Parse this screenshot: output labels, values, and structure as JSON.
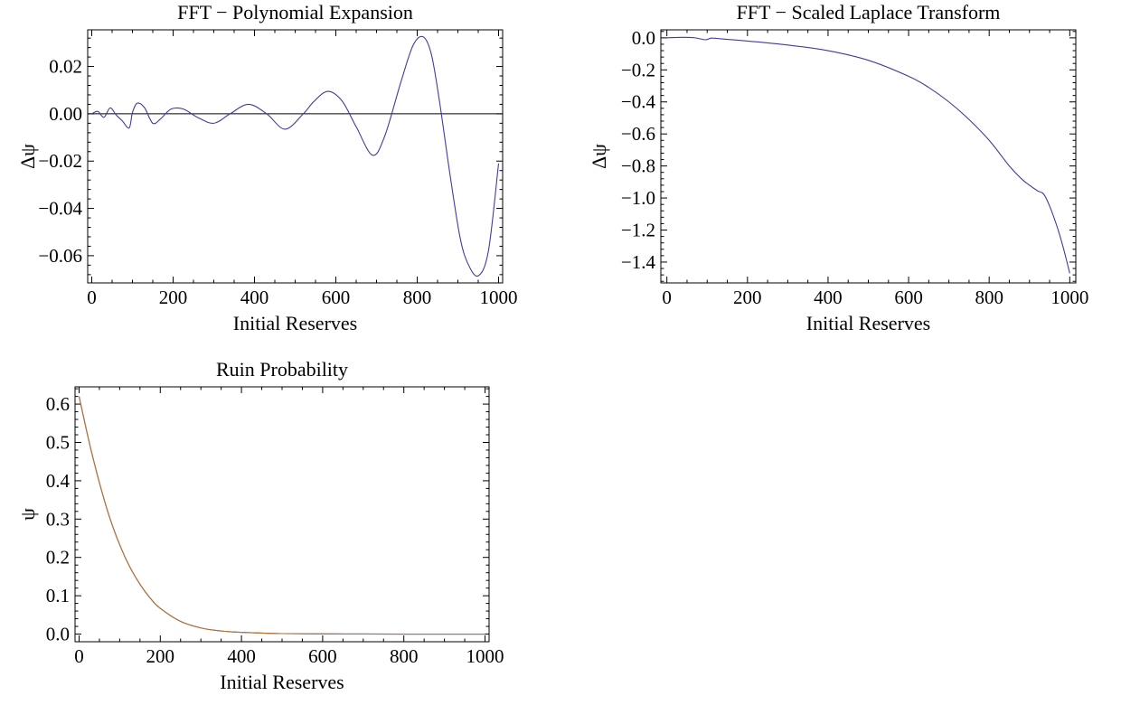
{
  "colors": {
    "series_blue": "#3f3d99",
    "series_orange": "#b5772f",
    "frame": "#000000",
    "background": "#ffffff"
  },
  "chart_data": [
    {
      "id": "poly",
      "type": "line",
      "title": "FFT − Polynomial Expansion",
      "xlabel": "Initial Reserves",
      "ylabel": "Δψ",
      "xlim": [
        -10,
        1010
      ],
      "ylim": [
        -0.0715,
        0.0355
      ],
      "xticks": [
        0,
        200,
        400,
        600,
        800,
        1000
      ],
      "xtick_labels": [
        "0",
        "200",
        "400",
        "600",
        "800",
        "1000"
      ],
      "yticks": [
        0.02,
        0.0,
        -0.02,
        -0.04,
        -0.06
      ],
      "ytick_labels": [
        "0.02",
        "0.00",
        "−0.02",
        "−0.04",
        "−0.06"
      ],
      "grid": false,
      "reference_line": 0,
      "series": [
        {
          "color": "#3f3d99",
          "x": [
            0,
            15,
            30,
            45,
            60,
            75,
            92,
            100,
            112,
            130,
            150,
            170,
            195,
            225,
            260,
            300,
            340,
            385,
            430,
            475,
            520,
            545,
            580,
            615,
            650,
            690,
            720,
            760,
            790,
            815,
            835,
            855,
            880,
            905,
            925,
            950,
            975,
            1000
          ],
          "y": [
            0.0,
            0.001,
            -0.0015,
            0.0025,
            -0.0005,
            -0.003,
            -0.006,
            0.0005,
            0.0045,
            0.0025,
            -0.004,
            -0.002,
            0.002,
            0.002,
            -0.0015,
            -0.004,
            0.0,
            0.004,
            0.0,
            -0.0065,
            0.0,
            0.005,
            0.0095,
            0.0055,
            -0.0055,
            -0.0175,
            -0.0095,
            0.0135,
            0.029,
            0.0325,
            0.025,
            0.005,
            -0.025,
            -0.052,
            -0.0635,
            -0.0685,
            -0.058,
            -0.021
          ]
        }
      ]
    },
    {
      "id": "laplace",
      "type": "line",
      "title": "FFT − Scaled Laplace Transform",
      "xlabel": "Initial Reserves",
      "ylabel": "Δψ",
      "xlim": [
        -15,
        1015
      ],
      "ylim": [
        -1.53,
        0.05
      ],
      "xticks": [
        0,
        200,
        400,
        600,
        800,
        1000
      ],
      "xtick_labels": [
        "0",
        "200",
        "400",
        "600",
        "800",
        "1000"
      ],
      "yticks": [
        0.0,
        -0.2,
        -0.4,
        -0.6,
        -0.8,
        -1.0,
        -1.2,
        -1.4
      ],
      "ytick_labels": [
        "0.0",
        "−0.2",
        "−0.4",
        "−0.6",
        "−0.8",
        "−1.0",
        "−1.2",
        "−1.4"
      ],
      "grid": false,
      "series": [
        {
          "color": "#3f3d99",
          "x": [
            0,
            40,
            70,
            95,
            110,
            130,
            200,
            300,
            400,
            500,
            600,
            650,
            700,
            750,
            800,
            850,
            880,
            900,
            920,
            935,
            950,
            970,
            985,
            1000
          ],
          "y": [
            0.0,
            0.003,
            0.0,
            -0.012,
            -0.002,
            -0.005,
            -0.02,
            -0.045,
            -0.08,
            -0.14,
            -0.24,
            -0.31,
            -0.4,
            -0.51,
            -0.64,
            -0.8,
            -0.88,
            -0.92,
            -0.955,
            -0.975,
            -1.05,
            -1.19,
            -1.32,
            -1.47
          ]
        }
      ]
    },
    {
      "id": "ruin",
      "type": "line",
      "title": "Ruin Probability",
      "xlabel": "Initial Reserves",
      "ylabel": "ψ",
      "xlim": [
        -10,
        1010
      ],
      "ylim": [
        -0.02,
        0.645
      ],
      "xticks": [
        0,
        200,
        400,
        600,
        800,
        1000
      ],
      "xtick_labels": [
        "0",
        "200",
        "400",
        "600",
        "800",
        "1000"
      ],
      "yticks": [
        0.0,
        0.1,
        0.2,
        0.3,
        0.4,
        0.5,
        0.6
      ],
      "ytick_labels": [
        "0.0",
        "0.1",
        "0.2",
        "0.3",
        "0.4",
        "0.5",
        "0.6"
      ],
      "grid": false,
      "series": [
        {
          "color": "#3f3d99",
          "x": [
            0,
            25,
            50,
            75,
            100,
            125,
            150,
            175,
            200,
            250,
            300,
            350,
            400,
            450,
            500,
            600,
            700,
            800,
            900,
            1000
          ],
          "y": [
            0.62,
            0.5,
            0.395,
            0.305,
            0.233,
            0.175,
            0.13,
            0.094,
            0.067,
            0.033,
            0.016,
            0.008,
            0.0045,
            0.0025,
            0.0012,
            0.0004,
            0.0001,
            0.0,
            0.0,
            0.0
          ]
        },
        {
          "color": "#b5772f",
          "x": [
            0,
            25,
            50,
            75,
            100,
            125,
            150,
            175,
            200,
            250,
            300,
            350,
            400,
            450,
            500,
            600,
            700,
            800,
            900,
            1000
          ],
          "y": [
            0.62,
            0.5,
            0.395,
            0.305,
            0.233,
            0.175,
            0.13,
            0.094,
            0.067,
            0.033,
            0.016,
            0.008,
            0.0045,
            0.0025,
            0.0012,
            0.0004,
            0.0001,
            0.0,
            0.0,
            0.0
          ]
        }
      ]
    }
  ]
}
